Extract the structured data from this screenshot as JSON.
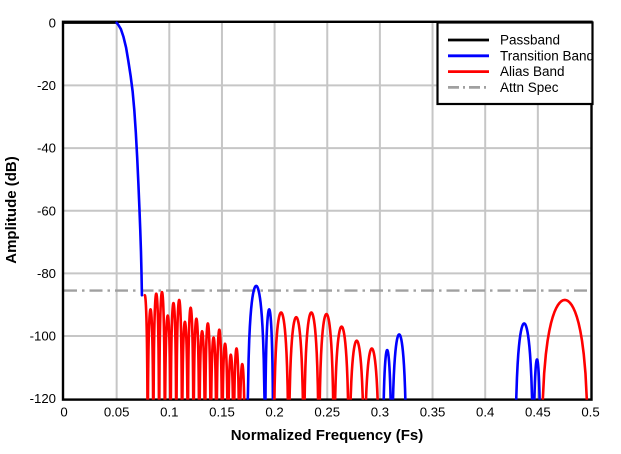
{
  "chart_data": {
    "type": "line",
    "title": "",
    "xlabel": "Normalized Frequency (Fs)",
    "ylabel": "Amplitude (dB)",
    "xlim": [
      0,
      0.5
    ],
    "ylim": [
      -120,
      0
    ],
    "xticks": [
      "0",
      "0.05",
      "0.1",
      "0.15",
      "0.2",
      "0.25",
      "0.3",
      "0.35",
      "0.4",
      "0.45",
      "0.5"
    ],
    "xtick_values": [
      0,
      0.05,
      0.1,
      0.15,
      0.2,
      0.25,
      0.3,
      0.35,
      0.4,
      0.45,
      0.5
    ],
    "yticks": [
      "0",
      "-20",
      "-40",
      "-60",
      "-80",
      "-100",
      "-120"
    ],
    "ytick_values": [
      0,
      -20,
      -40,
      -60,
      -80,
      -100,
      -120
    ],
    "grid": true,
    "attn_spec_db": -85.5,
    "colors": {
      "passband": "#000000",
      "transition": "#0000ff",
      "alias": "#ff0000",
      "spec": "#a0a0a0",
      "grid": "#c6c6c6",
      "axis": "#000000",
      "background": "#ffffff"
    },
    "legend": {
      "position": "top-right",
      "items": [
        {
          "label": "Passband",
          "color": "#000000",
          "dash": "solid"
        },
        {
          "label": "Transition Band",
          "color": "#0000ff",
          "dash": "solid"
        },
        {
          "label": "Alias Band",
          "color": "#ff0000",
          "dash": "solid"
        },
        {
          "label": "Attn Spec",
          "color": "#a0a0a0",
          "dash": "dash-dot"
        }
      ]
    },
    "series": [
      {
        "name": "passband-flat",
        "band": "passband",
        "kind": "flat",
        "x0": 0,
        "x1": 0.0513,
        "db": 0
      },
      {
        "name": "transition-rolloff",
        "band": "transition",
        "kind": "polyline",
        "points": [
          [
            0.05,
            0
          ],
          [
            0.0513,
            -0.5
          ],
          [
            0.054,
            -2
          ],
          [
            0.0565,
            -4.5
          ],
          [
            0.059,
            -8
          ],
          [
            0.061,
            -12
          ],
          [
            0.0633,
            -17
          ],
          [
            0.0652,
            -22
          ],
          [
            0.0668,
            -28
          ],
          [
            0.0682,
            -35
          ],
          [
            0.0695,
            -43
          ],
          [
            0.0706,
            -51
          ],
          [
            0.0716,
            -59
          ],
          [
            0.0724,
            -66
          ],
          [
            0.0731,
            -73
          ],
          [
            0.0736,
            -80
          ],
          [
            0.074,
            -87
          ]
        ]
      },
      {
        "name": "alias-band-1",
        "band": "alias",
        "kind": "lobes",
        "start_at_peak": true,
        "x0": 0.074,
        "x1": 0.172,
        "peaks": [
          -87,
          -91.5,
          -86.5,
          -86,
          -93.5,
          -89.5,
          -88.5,
          -95.5,
          -91,
          -94.5,
          -98.5,
          -96,
          -100.5,
          -98,
          -102.5,
          -106,
          -104,
          -109
        ]
      },
      {
        "name": "transition-lobes-1",
        "band": "transition",
        "kind": "lobes",
        "bounds": [
          [
            0.1741,
            0.1909,
            -84
          ],
          [
            0.1909,
            0.1988,
            -91.5
          ]
        ]
      },
      {
        "name": "alias-band-2",
        "band": "alias",
        "kind": "lobes",
        "x0": 0.199,
        "x1": 0.2995,
        "peaks": [
          -92.5,
          -94,
          -92.5,
          -93,
          -97,
          -101.5,
          -104
        ]
      },
      {
        "name": "transition-lobes-2",
        "band": "transition",
        "kind": "lobes",
        "bounds": [
          [
            0.3026,
            0.3112,
            -104.5
          ],
          [
            0.3112,
            0.3254,
            -99.5
          ]
        ]
      },
      {
        "name": "transition-lobes-3",
        "band": "transition",
        "kind": "lobes",
        "bounds": [
          [
            0.4283,
            0.4457,
            -96
          ],
          [
            0.4457,
            0.4527,
            -107.5
          ]
        ]
      },
      {
        "name": "alias-band-3",
        "band": "alias",
        "kind": "lobes",
        "bounds": [
          [
            0.4527,
            0.4985,
            -88.5
          ]
        ]
      }
    ]
  }
}
